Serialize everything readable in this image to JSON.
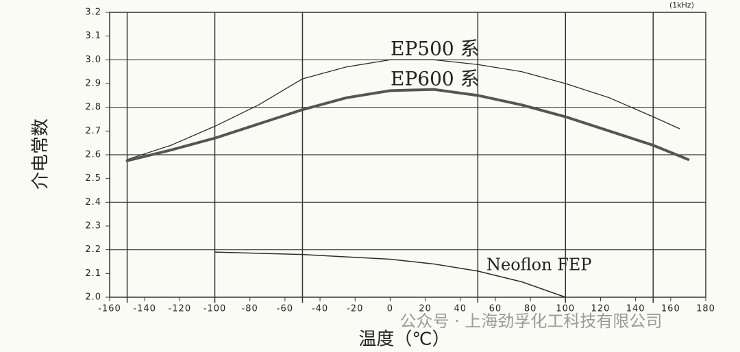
{
  "chart_data": {
    "type": "line",
    "y_label": "介电常数",
    "x_label": "温度（℃）",
    "note": "(1kHz)",
    "watermark": "公众号 · 上海劲孚化工科技有限公司",
    "xlim": [
      -160,
      180
    ],
    "ylim": [
      2.0,
      3.2
    ],
    "xticks": [
      -160,
      -140,
      -120,
      -100,
      -80,
      -60,
      -40,
      -20,
      0,
      20,
      40,
      60,
      80,
      100,
      120,
      140,
      160,
      180
    ],
    "yticks": [
      {
        "value": 2.0,
        "label": "2.0"
      },
      2.1,
      2.2,
      2.3,
      2.4,
      2.5,
      2.6,
      2.7,
      2.8,
      2.9,
      {
        "value": 3.0,
        "label": "3.0"
      },
      3.1,
      3.2
    ],
    "xgrid": [
      -150,
      -100,
      -50,
      50,
      100,
      150
    ],
    "ygrid": [
      2.2,
      2.4,
      2.6,
      2.8,
      3.0
    ],
    "series": [
      {
        "name": "EP500 系",
        "color": "#2a2a2a",
        "width": 1.3,
        "x": [
          -150,
          -125,
          -100,
          -75,
          -50,
          -25,
          0,
          25,
          50,
          75,
          100,
          125,
          150,
          165
        ],
        "values": [
          2.58,
          2.64,
          2.72,
          2.81,
          2.92,
          2.97,
          3.0,
          3.0,
          2.98,
          2.95,
          2.9,
          2.84,
          2.76,
          2.71
        ]
      },
      {
        "name": "EP600 系",
        "color": "#555555",
        "width": 4,
        "x": [
          -150,
          -125,
          -100,
          -75,
          -50,
          -25,
          0,
          25,
          50,
          75,
          100,
          125,
          150,
          170
        ],
        "values": [
          2.575,
          2.62,
          2.67,
          2.73,
          2.79,
          2.84,
          2.87,
          2.875,
          2.85,
          2.81,
          2.76,
          2.7,
          2.64,
          2.58
        ]
      },
      {
        "name": "Neoflon FEP",
        "color": "#2a2a2a",
        "width": 1.5,
        "x": [
          -100,
          -75,
          -50,
          -25,
          0,
          25,
          50,
          75,
          100
        ],
        "values": [
          2.19,
          2.185,
          2.18,
          2.17,
          2.16,
          2.14,
          2.11,
          2.065,
          2.0
        ]
      }
    ]
  }
}
